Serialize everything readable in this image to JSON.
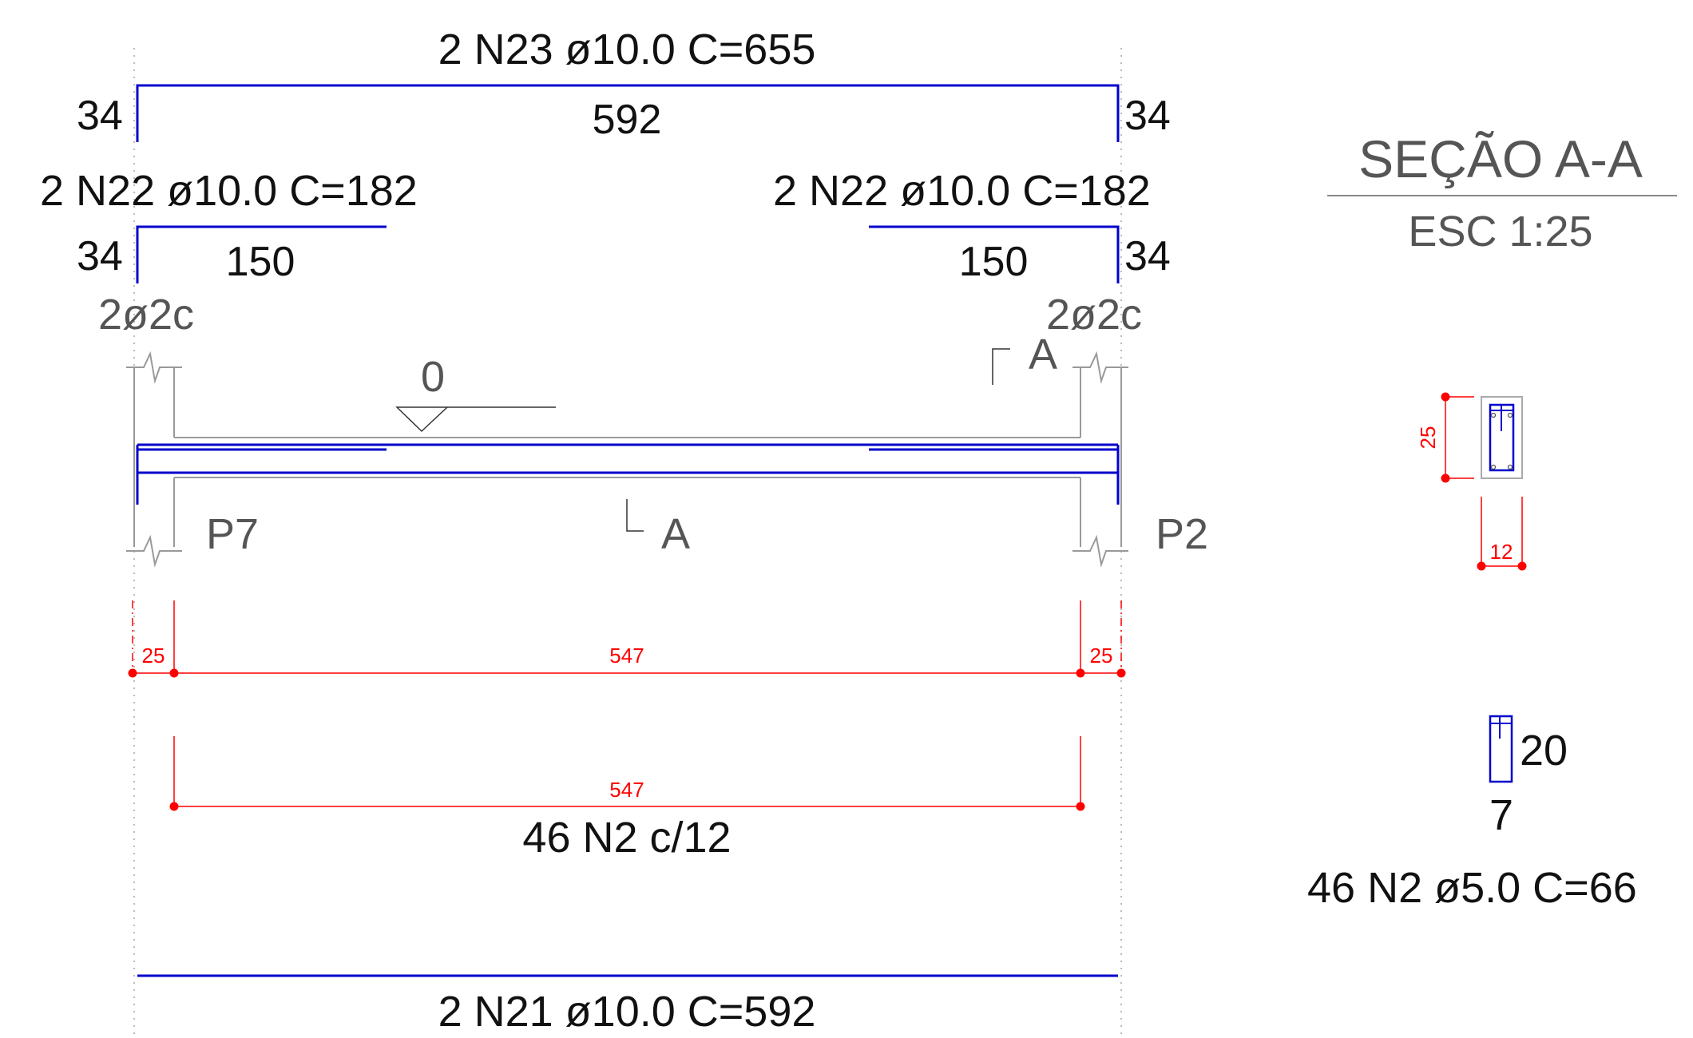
{
  "bars": {
    "n23_label": "2 N23 ø10.0  C=655",
    "n23_hook_left": "34",
    "n23_length": "592",
    "n23_hook_right": "34",
    "n22_left_label": "2 N22 ø10.0  C=182",
    "n22_left_hook": "34",
    "n22_left_length": "150",
    "n22_right_label": "2 N22 ø10.0  C=182",
    "n22_right_length": "150",
    "n22_right_hook": "34",
    "n21_label": "2 N21 ø10.0  C=592"
  },
  "elevation": {
    "support_left_bars": "2ø2c",
    "support_right_bars": "2ø2c",
    "level_value": "0",
    "section_cut_top": "A",
    "section_cut_bottom": "A",
    "pillar_left": "P7",
    "pillar_right": "P2"
  },
  "dimensions": {
    "support_left_width": "25",
    "clear_span": "547",
    "support_right_width": "25",
    "stirrup_zone_length": "547",
    "stirrup_spacing_label": "46 N2 c/12"
  },
  "section": {
    "title": "SEÇÃO A-A",
    "scale": "ESC 1:25",
    "height_dim": "25",
    "width_dim": "12"
  },
  "stirrup": {
    "height": "20",
    "width": "7",
    "label": "46 N2 ø5.0  C=66"
  },
  "colors": {
    "rebar": "#0000cc",
    "dimension": "#ff0000",
    "concrete_outline": "#999999",
    "text": "#111111",
    "annotation": "#555555"
  }
}
